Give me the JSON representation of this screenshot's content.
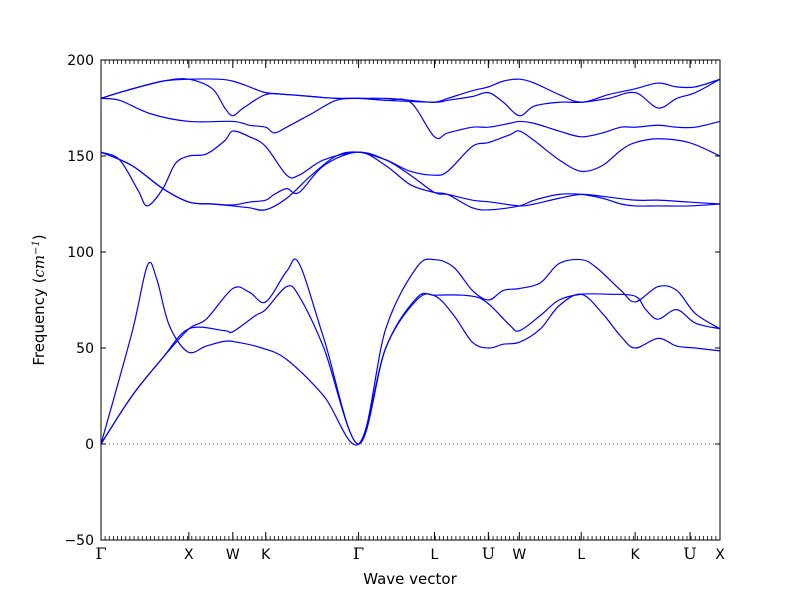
{
  "chart_data": {
    "type": "line",
    "xlabel": "Wave vector",
    "ylabel_prefix": "Frequency (",
    "ylabel_unit": "cm",
    "ylabel_exp": "−1",
    "ylabel_suffix": ")",
    "ylim": [
      -50,
      200
    ],
    "yticks": [
      -50,
      0,
      50,
      100,
      150,
      200
    ],
    "xlim": [
      0,
      1
    ],
    "grid": false,
    "legend": "none",
    "line_color": "#0000ff",
    "zero_line_color": "#555555",
    "high_symmetry_points": [
      {
        "label": "Γ",
        "x": 0.0
      },
      {
        "label": "X",
        "x": 0.1419
      },
      {
        "label": "W",
        "x": 0.2129
      },
      {
        "label": "K",
        "x": 0.2661
      },
      {
        "label": "Γ",
        "x": 0.4161
      },
      {
        "label": "L",
        "x": 0.5387
      },
      {
        "label": "U",
        "x": 0.6258
      },
      {
        "label": "W",
        "x": 0.6758
      },
      {
        "label": "L",
        "x": 0.7758
      },
      {
        "label": "K",
        "x": 0.8629
      },
      {
        "label": "U",
        "x": 0.9516
      },
      {
        "label": "X",
        "x": 1.0
      }
    ],
    "series": [
      {
        "points": [
          [
            0,
            0
          ],
          [
            0.05,
            58
          ],
          [
            0.075,
            93
          ],
          [
            0.09,
            86
          ],
          [
            0.11,
            62
          ],
          [
            0.14,
            48
          ],
          [
            0.17,
            51
          ],
          [
            0.2,
            53.5
          ],
          [
            0.22,
            53
          ],
          [
            0.26,
            50
          ],
          [
            0.3,
            44
          ],
          [
            0.36,
            25
          ],
          [
            0.4161,
            0
          ],
          [
            0.46,
            50
          ],
          [
            0.51,
            75
          ],
          [
            0.54,
            77
          ],
          [
            0.57,
            67
          ],
          [
            0.6,
            53
          ],
          [
            0.626,
            50
          ],
          [
            0.65,
            52
          ],
          [
            0.676,
            53
          ],
          [
            0.71,
            60
          ],
          [
            0.74,
            72
          ],
          [
            0.776,
            78
          ],
          [
            0.81,
            68
          ],
          [
            0.84,
            56
          ],
          [
            0.863,
            50
          ],
          [
            0.9,
            55
          ],
          [
            0.93,
            51
          ],
          [
            0.96,
            50
          ],
          [
            1.0,
            48.5
          ]
        ]
      },
      {
        "points": [
          [
            0,
            0
          ],
          [
            0.05,
            25
          ],
          [
            0.1,
            45
          ],
          [
            0.142,
            60
          ],
          [
            0.2,
            59
          ],
          [
            0.213,
            58.5
          ],
          [
            0.25,
            67
          ],
          [
            0.266,
            70
          ],
          [
            0.3,
            82
          ],
          [
            0.32,
            77
          ],
          [
            0.36,
            50
          ],
          [
            0.4161,
            0
          ],
          [
            0.46,
            50
          ],
          [
            0.51,
            76
          ],
          [
            0.54,
            77.5
          ],
          [
            0.6,
            77
          ],
          [
            0.626,
            73
          ],
          [
            0.66,
            62
          ],
          [
            0.676,
            59
          ],
          [
            0.71,
            67
          ],
          [
            0.74,
            75
          ],
          [
            0.776,
            78
          ],
          [
            0.82,
            78
          ],
          [
            0.863,
            77
          ],
          [
            0.88,
            70
          ],
          [
            0.9,
            65
          ],
          [
            0.93,
            70
          ],
          [
            0.96,
            63
          ],
          [
            1.0,
            60
          ]
        ]
      },
      {
        "points": [
          [
            0,
            0
          ],
          [
            0.05,
            25
          ],
          [
            0.1,
            45
          ],
          [
            0.142,
            60
          ],
          [
            0.17,
            65
          ],
          [
            0.213,
            81
          ],
          [
            0.24,
            79
          ],
          [
            0.266,
            74
          ],
          [
            0.3,
            90
          ],
          [
            0.32,
            94
          ],
          [
            0.36,
            55
          ],
          [
            0.4161,
            0
          ],
          [
            0.46,
            60
          ],
          [
            0.51,
            92
          ],
          [
            0.54,
            96
          ],
          [
            0.57,
            92
          ],
          [
            0.6,
            80
          ],
          [
            0.626,
            75
          ],
          [
            0.65,
            80
          ],
          [
            0.676,
            81
          ],
          [
            0.71,
            84
          ],
          [
            0.74,
            94
          ],
          [
            0.776,
            96
          ],
          [
            0.8,
            92
          ],
          [
            0.84,
            80
          ],
          [
            0.863,
            74
          ],
          [
            0.9,
            82
          ],
          [
            0.93,
            80
          ],
          [
            0.96,
            68
          ],
          [
            1.0,
            60
          ]
        ]
      },
      {
        "points": [
          [
            0,
            152
          ],
          [
            0.03,
            148
          ],
          [
            0.06,
            132
          ],
          [
            0.075,
            124
          ],
          [
            0.1,
            133
          ],
          [
            0.12,
            146
          ],
          [
            0.142,
            150
          ],
          [
            0.17,
            151
          ],
          [
            0.2,
            158
          ],
          [
            0.213,
            163
          ],
          [
            0.24,
            160
          ],
          [
            0.266,
            155
          ],
          [
            0.3,
            140
          ],
          [
            0.32,
            140
          ],
          [
            0.36,
            148
          ],
          [
            0.4161,
            152
          ],
          [
            0.46,
            148
          ],
          [
            0.5,
            140
          ],
          [
            0.5387,
            131
          ],
          [
            0.56,
            130
          ],
          [
            0.6,
            127
          ],
          [
            0.63,
            126
          ],
          [
            0.676,
            124
          ],
          [
            0.7,
            125
          ],
          [
            0.74,
            128
          ],
          [
            0.776,
            130
          ],
          [
            0.81,
            129
          ],
          [
            0.863,
            127
          ],
          [
            0.9,
            127
          ],
          [
            0.95,
            126
          ],
          [
            1.0,
            125
          ]
        ]
      },
      {
        "points": [
          [
            0,
            152
          ],
          [
            0.05,
            145
          ],
          [
            0.1,
            133
          ],
          [
            0.142,
            126
          ],
          [
            0.18,
            125
          ],
          [
            0.213,
            124.5
          ],
          [
            0.24,
            126
          ],
          [
            0.266,
            127
          ],
          [
            0.28,
            130
          ],
          [
            0.3,
            133
          ],
          [
            0.32,
            131
          ],
          [
            0.36,
            145
          ],
          [
            0.4161,
            152
          ],
          [
            0.46,
            145
          ],
          [
            0.5,
            135
          ],
          [
            0.5387,
            131
          ],
          [
            0.56,
            130
          ],
          [
            0.6,
            123
          ],
          [
            0.63,
            122
          ],
          [
            0.676,
            124
          ],
          [
            0.7,
            127
          ],
          [
            0.74,
            130
          ],
          [
            0.776,
            130
          ],
          [
            0.81,
            128
          ],
          [
            0.84,
            125
          ],
          [
            0.863,
            124
          ],
          [
            0.9,
            124
          ],
          [
            0.95,
            124
          ],
          [
            1.0,
            125
          ]
        ]
      },
      {
        "points": [
          [
            0,
            152
          ],
          [
            0.05,
            145
          ],
          [
            0.1,
            133
          ],
          [
            0.142,
            126
          ],
          [
            0.18,
            125
          ],
          [
            0.213,
            124
          ],
          [
            0.24,
            123
          ],
          [
            0.266,
            122
          ],
          [
            0.3,
            128
          ],
          [
            0.34,
            140
          ],
          [
            0.38,
            150
          ],
          [
            0.4161,
            152
          ],
          [
            0.46,
            148
          ],
          [
            0.5,
            142
          ],
          [
            0.5387,
            140
          ],
          [
            0.56,
            142
          ],
          [
            0.6,
            155
          ],
          [
            0.626,
            157
          ],
          [
            0.66,
            161
          ],
          [
            0.676,
            163
          ],
          [
            0.7,
            158
          ],
          [
            0.74,
            148
          ],
          [
            0.776,
            142
          ],
          [
            0.81,
            145
          ],
          [
            0.84,
            153
          ],
          [
            0.863,
            157
          ],
          [
            0.9,
            159
          ],
          [
            0.95,
            157
          ],
          [
            1.0,
            150
          ]
        ]
      },
      {
        "points": [
          [
            0,
            180
          ],
          [
            0.03,
            179
          ],
          [
            0.08,
            172
          ],
          [
            0.142,
            168
          ],
          [
            0.213,
            168
          ],
          [
            0.24,
            166
          ],
          [
            0.266,
            165
          ],
          [
            0.28,
            162
          ],
          [
            0.3,
            165
          ],
          [
            0.34,
            172
          ],
          [
            0.38,
            179
          ],
          [
            0.4161,
            180
          ],
          [
            0.46,
            179
          ],
          [
            0.5,
            178
          ],
          [
            0.5387,
            160
          ],
          [
            0.56,
            162
          ],
          [
            0.6,
            165
          ],
          [
            0.626,
            165
          ],
          [
            0.66,
            167
          ],
          [
            0.676,
            168
          ],
          [
            0.7,
            167
          ],
          [
            0.74,
            163
          ],
          [
            0.776,
            160
          ],
          [
            0.81,
            162
          ],
          [
            0.84,
            165
          ],
          [
            0.863,
            165
          ],
          [
            0.9,
            166
          ],
          [
            0.93,
            165
          ],
          [
            0.96,
            165
          ],
          [
            1.0,
            168
          ]
        ]
      },
      {
        "points": [
          [
            0,
            180
          ],
          [
            0.04,
            184
          ],
          [
            0.1,
            189
          ],
          [
            0.142,
            190
          ],
          [
            0.18,
            185
          ],
          [
            0.2,
            175
          ],
          [
            0.213,
            171
          ],
          [
            0.23,
            175
          ],
          [
            0.266,
            182
          ],
          [
            0.3,
            182
          ],
          [
            0.34,
            181
          ],
          [
            0.38,
            180
          ],
          [
            0.4161,
            180
          ],
          [
            0.46,
            179
          ],
          [
            0.5387,
            178
          ],
          [
            0.56,
            179
          ],
          [
            0.6,
            181
          ],
          [
            0.626,
            183
          ],
          [
            0.65,
            178
          ],
          [
            0.676,
            171
          ],
          [
            0.7,
            176
          ],
          [
            0.74,
            178
          ],
          [
            0.776,
            178
          ],
          [
            0.82,
            180
          ],
          [
            0.863,
            183
          ],
          [
            0.9,
            175
          ],
          [
            0.93,
            180
          ],
          [
            0.96,
            183
          ],
          [
            1.0,
            190
          ]
        ]
      },
      {
        "points": [
          [
            0,
            180
          ],
          [
            0.04,
            184
          ],
          [
            0.1,
            189
          ],
          [
            0.142,
            190
          ],
          [
            0.19,
            190
          ],
          [
            0.213,
            189
          ],
          [
            0.24,
            186
          ],
          [
            0.266,
            183
          ],
          [
            0.3,
            182
          ],
          [
            0.34,
            181
          ],
          [
            0.38,
            180
          ],
          [
            0.4161,
            180
          ],
          [
            0.46,
            180
          ],
          [
            0.5,
            179
          ],
          [
            0.5387,
            178
          ],
          [
            0.56,
            180
          ],
          [
            0.6,
            184
          ],
          [
            0.626,
            186
          ],
          [
            0.65,
            189
          ],
          [
            0.676,
            190
          ],
          [
            0.7,
            188
          ],
          [
            0.74,
            182
          ],
          [
            0.776,
            178
          ],
          [
            0.82,
            182
          ],
          [
            0.863,
            185
          ],
          [
            0.9,
            188
          ],
          [
            0.93,
            186
          ],
          [
            0.96,
            186
          ],
          [
            1.0,
            190
          ]
        ]
      }
    ]
  }
}
